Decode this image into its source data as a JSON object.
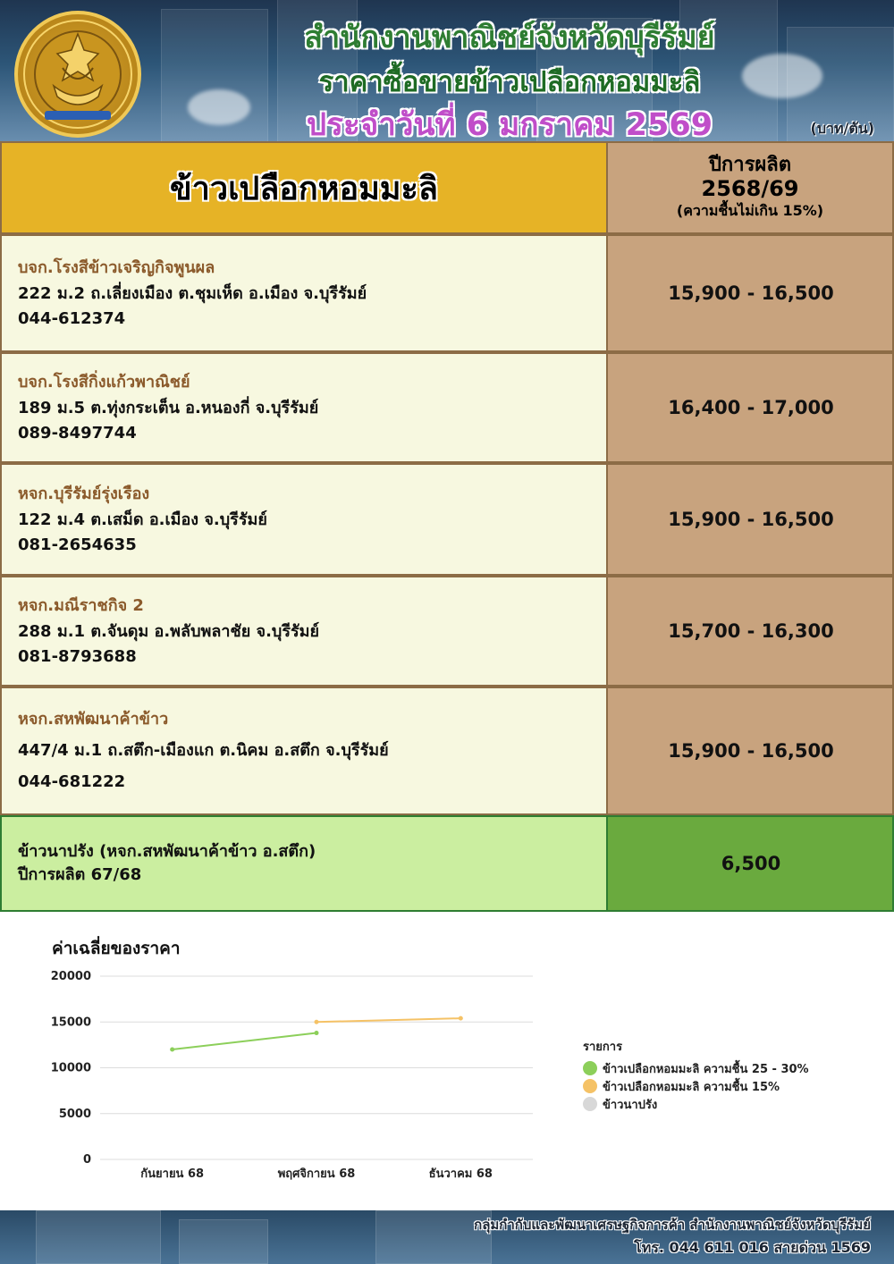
{
  "header": {
    "title_line1": "สำนักงานพาณิชย์จังหวัดบุรีรัมย์",
    "title_line2": "ราคาซื้อขายข้าวเปลือกหอมมะลิ",
    "title_line3": "ประจำวันที่ 6 มกราคม 2569",
    "unit": "(บาท/ตัน)"
  },
  "table": {
    "col_left_header": "ข้าวเปลือกหอมมะลิ",
    "col_right_header_line1": "ปีการผลิต",
    "col_right_header_line2": "2568/69",
    "col_right_header_line3": "(ความชื้นไม่เกิน 15%)",
    "rows": [
      {
        "name": "บจก.โรงสีข้าวเจริญกิจพูนผล",
        "address": "222 ม.2 ถ.เลี่ยงเมือง ต.ชุมเห็ด อ.เมือง จ.บุรีรัมย์",
        "phone": "044-612374",
        "price": "15,900 - 16,500"
      },
      {
        "name": "บจก.โรงสีกิ่งแก้วพาณิชย์",
        "address": "189 ม.5 ต.ทุ่งกระเต็น อ.หนองกี่ จ.บุรีรัมย์",
        "phone": "089-8497744",
        "price": "16,400 - 17,000"
      },
      {
        "name": "หจก.บุรีรัมย์รุ่งเรือง",
        "address": "122  ม.4  ต.เสม็ด  อ.เมือง จ.บุรีรัมย์",
        "phone": "081-2654635",
        "price": "15,900 - 16,500"
      },
      {
        "name": "หจก.มณีราชกิจ 2",
        "address": "288 ม.1  ต.จันดุม อ.พลับพลาชัย จ.บุรีรัมย์",
        "phone": "081-8793688",
        "price": "15,700 - 16,300"
      },
      {
        "name": "หจก.สหพัฒนาค้าข้าว",
        "address": "447/4  ม.1 ถ.สตึก-เมืองแก ต.นิคม อ.สตึก จ.บุรีรัมย์",
        "phone": "044-681222",
        "price": "15,900 - 16,500"
      }
    ],
    "last_row": {
      "line1": "ข้าวนาปรัง  (หจก.สหพัฒนาค้าข้าว อ.สตึก)",
      "line2": "ปีการผลิต 67/68",
      "price": "6,500"
    }
  },
  "chart_title": "ค่าเฉลี่ยของราคา",
  "chart_data": {
    "type": "line",
    "title": "ค่าเฉลี่ยของราคา",
    "categories": [
      "กันยายน 68",
      "พฤศจิกายน 68",
      "ธันวาคม 68"
    ],
    "ylim": [
      0,
      20000
    ],
    "yticks": [
      0,
      5000,
      10000,
      15000,
      20000
    ],
    "grid": true,
    "legend_position": "right",
    "legend_title": "รายการ",
    "series": [
      {
        "name": "ข้าวเปลือกหอมมะลิ ความชื้น 25 - 30%",
        "color": "#8ccf5a",
        "values": [
          12000,
          13800,
          null
        ]
      },
      {
        "name": "ข้าวเปลือกหอมมะลิ ความชื้น 15%",
        "color": "#f5c266",
        "values": [
          null,
          15000,
          15400
        ]
      },
      {
        "name": "ข้าวนาปรัง",
        "color": "#d8d8d8",
        "values": [
          null,
          null,
          null
        ]
      }
    ]
  },
  "footer": {
    "line1": "กลุ่มกำกับและพัฒนาเศรษฐกิจการค้า สำนักงานพาณิชย์จังหวัดบุรีรัมย์",
    "line2": "โทร. 044 611 016 สายด่วน 1569"
  }
}
